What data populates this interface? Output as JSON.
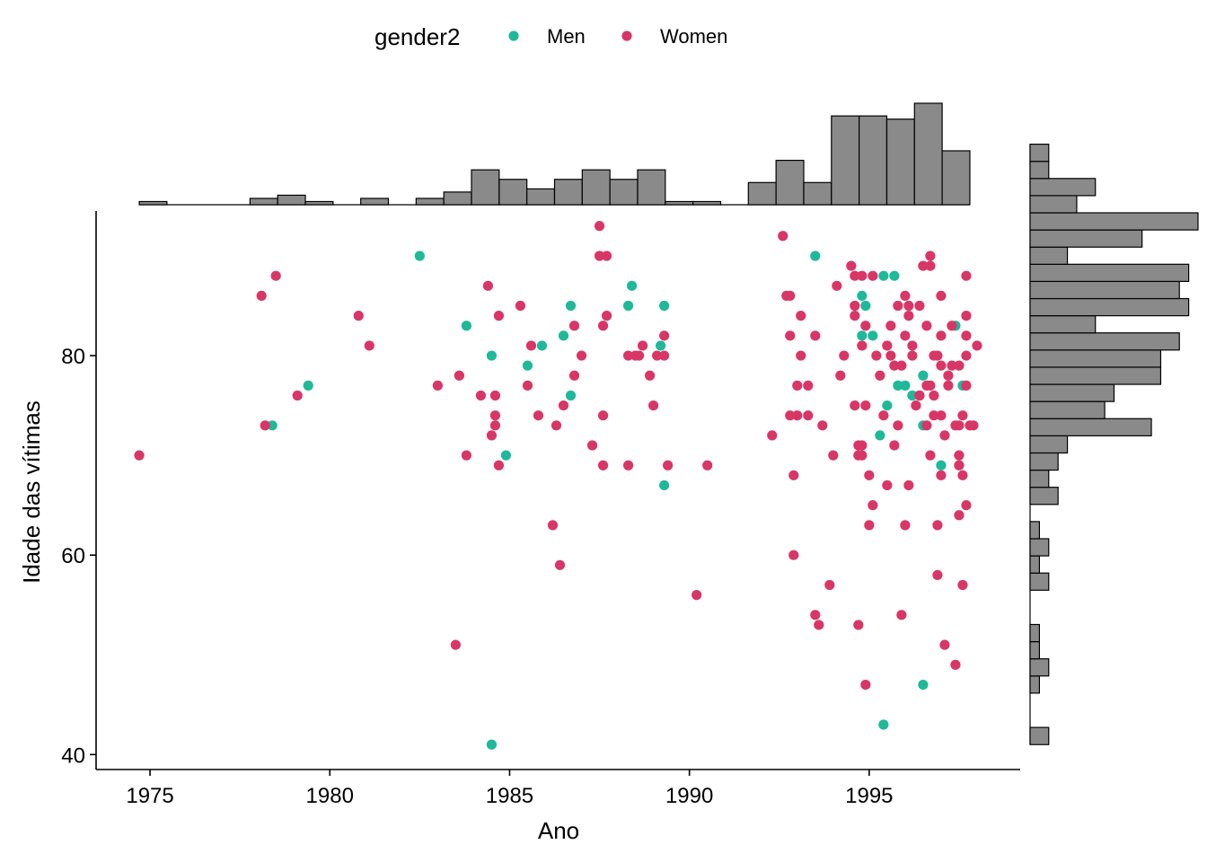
{
  "chart_data": {
    "type": "scatter",
    "xlabel": "Ano",
    "ylabel": "Idade das vítimas",
    "xlim": [
      1973.5,
      1999.2
    ],
    "ylim": [
      38.5,
      94.5
    ],
    "x_ticks": [
      1975,
      1980,
      1985,
      1990,
      1995
    ],
    "y_ticks": [
      40,
      60,
      80
    ],
    "legend": {
      "title": "gender2",
      "position": "top",
      "entries": [
        {
          "label": "Men",
          "color": "#1FB99A"
        },
        {
          "label": "Women",
          "color": "#D93668"
        }
      ]
    },
    "series": [
      {
        "name": "Men",
        "color": "#1FB99A",
        "points": [
          [
            1978.4,
            73
          ],
          [
            1979.4,
            77
          ],
          [
            1982.5,
            90
          ],
          [
            1983.8,
            83
          ],
          [
            1984.5,
            80
          ],
          [
            1984.5,
            41
          ],
          [
            1984.9,
            70
          ],
          [
            1985.5,
            79
          ],
          [
            1985.9,
            81
          ],
          [
            1986.5,
            82
          ],
          [
            1986.7,
            85
          ],
          [
            1986.7,
            76
          ],
          [
            1988.3,
            85
          ],
          [
            1988.4,
            87
          ],
          [
            1989.2,
            81
          ],
          [
            1989.3,
            85
          ],
          [
            1989.3,
            67
          ],
          [
            1993.5,
            90
          ],
          [
            1994.8,
            82
          ],
          [
            1994.8,
            86
          ],
          [
            1994.9,
            85
          ],
          [
            1995.1,
            82
          ],
          [
            1995.3,
            72
          ],
          [
            1995.4,
            88
          ],
          [
            1995.5,
            75
          ],
          [
            1995.7,
            88
          ],
          [
            1995.8,
            77
          ],
          [
            1996.0,
            77
          ],
          [
            1996.2,
            76
          ],
          [
            1996.5,
            78
          ],
          [
            1996.5,
            73
          ],
          [
            1996.5,
            47
          ],
          [
            1995.4,
            43
          ],
          [
            1997.0,
            69
          ],
          [
            1997.4,
            83
          ],
          [
            1997.6,
            77
          ]
        ]
      },
      {
        "name": "Women",
        "color": "#D93668",
        "points": [
          [
            1974.7,
            70
          ],
          [
            1978.1,
            86
          ],
          [
            1978.2,
            73
          ],
          [
            1978.5,
            88
          ],
          [
            1979.1,
            76
          ],
          [
            1980.8,
            84
          ],
          [
            1981.1,
            81
          ],
          [
            1983.0,
            77
          ],
          [
            1983.5,
            51
          ],
          [
            1983.6,
            78
          ],
          [
            1983.8,
            70
          ],
          [
            1984.2,
            76
          ],
          [
            1984.4,
            87
          ],
          [
            1984.5,
            72
          ],
          [
            1984.6,
            76
          ],
          [
            1984.6,
            74
          ],
          [
            1984.6,
            73
          ],
          [
            1984.7,
            84
          ],
          [
            1984.7,
            69
          ],
          [
            1985.3,
            85
          ],
          [
            1985.5,
            77
          ],
          [
            1985.6,
            81
          ],
          [
            1985.8,
            74
          ],
          [
            1986.2,
            63
          ],
          [
            1986.3,
            73
          ],
          [
            1986.4,
            59
          ],
          [
            1986.5,
            75
          ],
          [
            1986.8,
            78
          ],
          [
            1986.8,
            83
          ],
          [
            1987.0,
            80
          ],
          [
            1987.3,
            71
          ],
          [
            1987.5,
            93
          ],
          [
            1987.5,
            90
          ],
          [
            1987.6,
            74
          ],
          [
            1987.6,
            69
          ],
          [
            1987.6,
            83
          ],
          [
            1987.7,
            84
          ],
          [
            1987.7,
            90
          ],
          [
            1988.3,
            80
          ],
          [
            1988.3,
            69
          ],
          [
            1988.5,
            80
          ],
          [
            1988.6,
            80
          ],
          [
            1988.7,
            81
          ],
          [
            1988.9,
            78
          ],
          [
            1989.0,
            75
          ],
          [
            1989.1,
            80
          ],
          [
            1989.3,
            82
          ],
          [
            1989.4,
            69
          ],
          [
            1989.3,
            80
          ],
          [
            1990.2,
            56
          ],
          [
            1990.5,
            69
          ],
          [
            1992.3,
            72
          ],
          [
            1992.6,
            92
          ],
          [
            1992.7,
            86
          ],
          [
            1992.8,
            82
          ],
          [
            1992.8,
            86
          ],
          [
            1992.8,
            74
          ],
          [
            1992.9,
            60
          ],
          [
            1992.9,
            68
          ],
          [
            1993.0,
            74
          ],
          [
            1993.0,
            77
          ],
          [
            1993.1,
            84
          ],
          [
            1993.1,
            80
          ],
          [
            1993.3,
            74
          ],
          [
            1993.3,
            77
          ],
          [
            1993.5,
            82
          ],
          [
            1993.5,
            54
          ],
          [
            1993.6,
            53
          ],
          [
            1993.7,
            73
          ],
          [
            1993.9,
            57
          ],
          [
            1994.0,
            70
          ],
          [
            1994.1,
            87
          ],
          [
            1994.2,
            78
          ],
          [
            1994.3,
            80
          ],
          [
            1994.5,
            89
          ],
          [
            1994.6,
            88
          ],
          [
            1994.6,
            75
          ],
          [
            1994.6,
            85
          ],
          [
            1994.6,
            84
          ],
          [
            1994.7,
            70
          ],
          [
            1994.7,
            71
          ],
          [
            1994.7,
            53
          ],
          [
            1994.8,
            70
          ],
          [
            1994.8,
            71
          ],
          [
            1994.8,
            81
          ],
          [
            1994.8,
            88
          ],
          [
            1994.9,
            47
          ],
          [
            1994.9,
            75
          ],
          [
            1994.9,
            83
          ],
          [
            1995.0,
            68
          ],
          [
            1995.0,
            63
          ],
          [
            1995.1,
            65
          ],
          [
            1995.1,
            88
          ],
          [
            1995.2,
            80
          ],
          [
            1995.3,
            78
          ],
          [
            1995.4,
            74
          ],
          [
            1995.5,
            67
          ],
          [
            1995.5,
            81
          ],
          [
            1995.6,
            80
          ],
          [
            1995.6,
            83
          ],
          [
            1995.7,
            79
          ],
          [
            1995.7,
            71
          ],
          [
            1995.8,
            73
          ],
          [
            1995.8,
            85
          ],
          [
            1995.9,
            79
          ],
          [
            1995.9,
            54
          ],
          [
            1996.0,
            63
          ],
          [
            1996.0,
            82
          ],
          [
            1996.0,
            86
          ],
          [
            1996.1,
            67
          ],
          [
            1996.1,
            85
          ],
          [
            1996.1,
            84
          ],
          [
            1996.2,
            81
          ],
          [
            1996.2,
            80
          ],
          [
            1996.3,
            75
          ],
          [
            1996.4,
            76
          ],
          [
            1996.4,
            85
          ],
          [
            1996.4,
            76
          ],
          [
            1996.5,
            89
          ],
          [
            1996.6,
            73
          ],
          [
            1996.6,
            83
          ],
          [
            1996.6,
            77
          ],
          [
            1996.7,
            90
          ],
          [
            1996.7,
            89
          ],
          [
            1996.7,
            70
          ],
          [
            1996.7,
            77
          ],
          [
            1996.8,
            74
          ],
          [
            1996.8,
            76
          ],
          [
            1996.8,
            80
          ],
          [
            1996.9,
            80
          ],
          [
            1996.9,
            58
          ],
          [
            1996.9,
            63
          ],
          [
            1997.0,
            82
          ],
          [
            1997.0,
            79
          ],
          [
            1997.0,
            74
          ],
          [
            1997.0,
            68
          ],
          [
            1997.0,
            86
          ],
          [
            1997.1,
            72
          ],
          [
            1997.1,
            51
          ],
          [
            1997.2,
            77
          ],
          [
            1997.2,
            78
          ],
          [
            1997.3,
            79
          ],
          [
            1997.3,
            83
          ],
          [
            1997.4,
            49
          ],
          [
            1997.4,
            73
          ],
          [
            1997.5,
            79
          ],
          [
            1997.5,
            70
          ],
          [
            1997.5,
            69
          ],
          [
            1997.5,
            64
          ],
          [
            1997.5,
            73
          ],
          [
            1997.6,
            57
          ],
          [
            1997.6,
            74
          ],
          [
            1997.6,
            68
          ],
          [
            1997.7,
            88
          ],
          [
            1997.7,
            84
          ],
          [
            1997.7,
            82
          ],
          [
            1997.7,
            80
          ],
          [
            1997.7,
            77
          ],
          [
            1997.7,
            65
          ],
          [
            1997.8,
            73
          ],
          [
            1997.9,
            73
          ],
          [
            1998.0,
            81
          ]
        ]
      }
    ],
    "marginal_x_histogram": {
      "bin_start": 1974.7,
      "bin_width": 0.77,
      "counts": [
        1,
        0,
        0,
        0,
        2,
        3,
        1,
        0,
        2,
        0,
        2,
        4,
        11,
        8,
        5,
        8,
        11,
        8,
        11,
        1,
        1,
        0,
        7,
        14,
        7,
        28,
        28,
        27,
        32,
        17
      ]
    },
    "marginal_y_histogram": {
      "bin_start": 41,
      "bin_width": 1.72,
      "counts": [
        2,
        0,
        0,
        1,
        2,
        1,
        1,
        0,
        0,
        2,
        1,
        2,
        1,
        0,
        3,
        2,
        3,
        4,
        13,
        8,
        9,
        14,
        14,
        16,
        7,
        17,
        16,
        17,
        4,
        12,
        18,
        5,
        7,
        2,
        2
      ]
    }
  }
}
